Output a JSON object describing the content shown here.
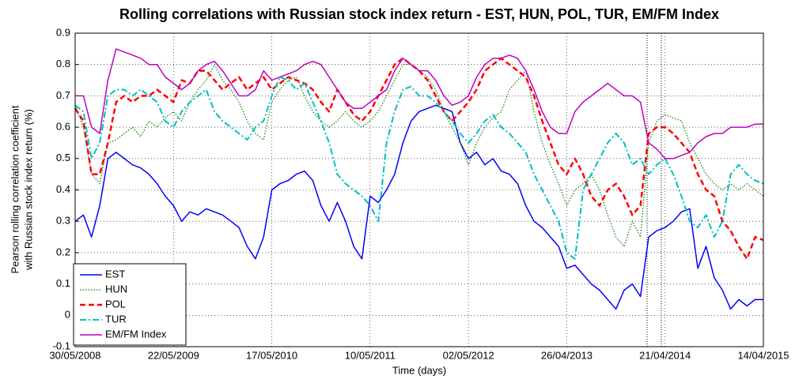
{
  "chart_data": {
    "type": "line",
    "title": "Rolling correlations with Russian stock index return - EST, HUN, POL, TUR, EM/FM Index",
    "xlabel": "Time (days)",
    "ylabel": [
      "Pearson rolling correlation coefficient",
      "with Russian stock index return (%)"
    ],
    "categories": [
      "30/05/2008",
      null,
      null,
      null,
      null,
      null,
      null,
      null,
      null,
      null,
      null,
      null,
      "22/05/2009",
      null,
      null,
      null,
      null,
      null,
      null,
      null,
      null,
      null,
      null,
      null,
      "17/05/2010",
      null,
      null,
      null,
      null,
      null,
      null,
      null,
      null,
      null,
      null,
      null,
      "10/05/2011",
      null,
      null,
      null,
      null,
      null,
      null,
      null,
      null,
      null,
      null,
      null,
      "02/05/2012",
      null,
      null,
      null,
      null,
      null,
      null,
      null,
      null,
      null,
      null,
      null,
      "26/04/2013",
      null,
      null,
      null,
      null,
      null,
      null,
      null,
      null,
      null,
      null,
      null,
      "21/04/2014",
      null,
      null,
      null,
      null,
      null,
      null,
      null,
      null,
      null,
      null,
      null,
      "14/04/2015"
    ],
    "ylim": [
      -0.1,
      0.9
    ],
    "yticks": [
      -0.1,
      0,
      0.1,
      0.2,
      0.3,
      0.4,
      0.5,
      0.6,
      0.7,
      0.8,
      0.9
    ],
    "grid": true,
    "legend": "lower left",
    "series": [
      {
        "name": "EST",
        "color": "#0000ff",
        "style": "solid",
        "values": [
          0.3,
          0.32,
          0.25,
          0.35,
          0.5,
          0.52,
          0.5,
          0.48,
          0.47,
          0.45,
          0.42,
          0.38,
          0.35,
          0.3,
          0.33,
          0.32,
          0.34,
          0.33,
          0.32,
          0.3,
          0.28,
          0.22,
          0.18,
          0.25,
          0.4,
          0.42,
          0.43,
          0.45,
          0.46,
          0.43,
          0.35,
          0.3,
          0.36,
          0.3,
          0.22,
          0.18,
          0.38,
          0.36,
          0.4,
          0.45,
          0.55,
          0.62,
          0.65,
          0.66,
          0.67,
          0.66,
          0.65,
          0.55,
          0.5,
          0.52,
          0.48,
          0.5,
          0.46,
          0.45,
          0.42,
          0.35,
          0.3,
          0.28,
          0.25,
          0.22,
          0.15,
          0.16,
          0.13,
          0.1,
          0.08,
          0.05,
          0.02,
          0.08,
          0.1,
          0.06,
          0.25,
          0.27,
          0.28,
          0.3,
          0.33,
          0.34,
          0.15,
          0.22,
          0.12,
          0.08,
          0.02,
          0.05,
          0.03,
          0.05,
          0.05
        ]
      },
      {
        "name": "HUN",
        "color": "#008000",
        "style": "dotted",
        "values": [
          0.67,
          0.6,
          0.45,
          0.42,
          0.55,
          0.56,
          0.58,
          0.6,
          0.57,
          0.62,
          0.6,
          0.63,
          0.65,
          0.62,
          0.68,
          0.72,
          0.75,
          0.8,
          0.75,
          0.72,
          0.68,
          0.62,
          0.58,
          0.56,
          0.68,
          0.72,
          0.75,
          0.76,
          0.7,
          0.65,
          0.62,
          0.6,
          0.62,
          0.65,
          0.62,
          0.6,
          0.62,
          0.65,
          0.7,
          0.75,
          0.8,
          0.8,
          0.78,
          0.76,
          0.72,
          0.65,
          0.6,
          0.55,
          0.48,
          0.55,
          0.6,
          0.63,
          0.65,
          0.72,
          0.75,
          0.78,
          0.65,
          0.55,
          0.48,
          0.42,
          0.35,
          0.4,
          0.42,
          0.45,
          0.4,
          0.32,
          0.25,
          0.22,
          0.3,
          0.25,
          0.55,
          0.62,
          0.64,
          0.63,
          0.62,
          0.55,
          0.5,
          0.45,
          0.42,
          0.4,
          0.42,
          0.4,
          0.42,
          0.4,
          0.38
        ]
      },
      {
        "name": "POL",
        "color": "#ff0000",
        "style": "dashed",
        "values": [
          0.66,
          0.62,
          0.45,
          0.45,
          0.55,
          0.68,
          0.7,
          0.68,
          0.7,
          0.7,
          0.72,
          0.7,
          0.68,
          0.75,
          0.74,
          0.78,
          0.78,
          0.75,
          0.72,
          0.74,
          0.76,
          0.72,
          0.74,
          0.76,
          0.72,
          0.74,
          0.76,
          0.75,
          0.74,
          0.72,
          0.68,
          0.65,
          0.72,
          0.68,
          0.64,
          0.62,
          0.65,
          0.7,
          0.75,
          0.8,
          0.82,
          0.8,
          0.78,
          0.75,
          0.7,
          0.65,
          0.62,
          0.65,
          0.68,
          0.72,
          0.78,
          0.8,
          0.82,
          0.8,
          0.78,
          0.76,
          0.7,
          0.62,
          0.55,
          0.48,
          0.45,
          0.5,
          0.45,
          0.38,
          0.35,
          0.4,
          0.42,
          0.38,
          0.32,
          0.35,
          0.58,
          0.6,
          0.6,
          0.58,
          0.55,
          0.52,
          0.45,
          0.4,
          0.38,
          0.3,
          0.27,
          0.22,
          0.18,
          0.25,
          0.24
        ]
      },
      {
        "name": "TUR",
        "color": "#00c0c0",
        "style": "dashdot",
        "values": [
          0.67,
          0.65,
          0.5,
          0.55,
          0.7,
          0.72,
          0.72,
          0.7,
          0.72,
          0.7,
          0.68,
          0.62,
          0.6,
          0.65,
          0.68,
          0.7,
          0.72,
          0.65,
          0.62,
          0.6,
          0.58,
          0.56,
          0.6,
          0.62,
          0.7,
          0.76,
          0.75,
          0.72,
          0.74,
          0.68,
          0.62,
          0.55,
          0.45,
          0.42,
          0.4,
          0.38,
          0.35,
          0.3,
          0.55,
          0.65,
          0.72,
          0.73,
          0.7,
          0.7,
          0.68,
          0.65,
          0.62,
          0.58,
          0.55,
          0.58,
          0.62,
          0.64,
          0.6,
          0.58,
          0.55,
          0.52,
          0.45,
          0.4,
          0.35,
          0.3,
          0.2,
          0.18,
          0.4,
          0.45,
          0.5,
          0.55,
          0.58,
          0.55,
          0.48,
          0.5,
          0.45,
          0.48,
          0.5,
          0.45,
          0.38,
          0.3,
          0.28,
          0.32,
          0.25,
          0.3,
          0.45,
          0.48,
          0.45,
          0.43,
          0.42
        ]
      },
      {
        "name": "EM/FM Index",
        "color": "#c000c0",
        "style": "solid",
        "values": [
          0.7,
          0.7,
          0.6,
          0.58,
          0.75,
          0.85,
          0.84,
          0.83,
          0.82,
          0.8,
          0.8,
          0.76,
          0.74,
          0.72,
          0.74,
          0.78,
          0.8,
          0.81,
          0.78,
          0.74,
          0.7,
          0.7,
          0.72,
          0.78,
          0.75,
          0.76,
          0.77,
          0.78,
          0.8,
          0.81,
          0.8,
          0.76,
          0.72,
          0.68,
          0.66,
          0.66,
          0.68,
          0.7,
          0.72,
          0.78,
          0.82,
          0.8,
          0.78,
          0.78,
          0.75,
          0.7,
          0.67,
          0.68,
          0.7,
          0.76,
          0.8,
          0.82,
          0.82,
          0.83,
          0.82,
          0.78,
          0.72,
          0.65,
          0.6,
          0.58,
          0.58,
          0.65,
          0.68,
          0.7,
          0.72,
          0.74,
          0.72,
          0.7,
          0.7,
          0.68,
          0.55,
          0.53,
          0.5,
          0.5,
          0.51,
          0.52,
          0.55,
          0.57,
          0.58,
          0.58,
          0.6,
          0.6,
          0.6,
          0.61,
          0.61
        ]
      }
    ]
  }
}
